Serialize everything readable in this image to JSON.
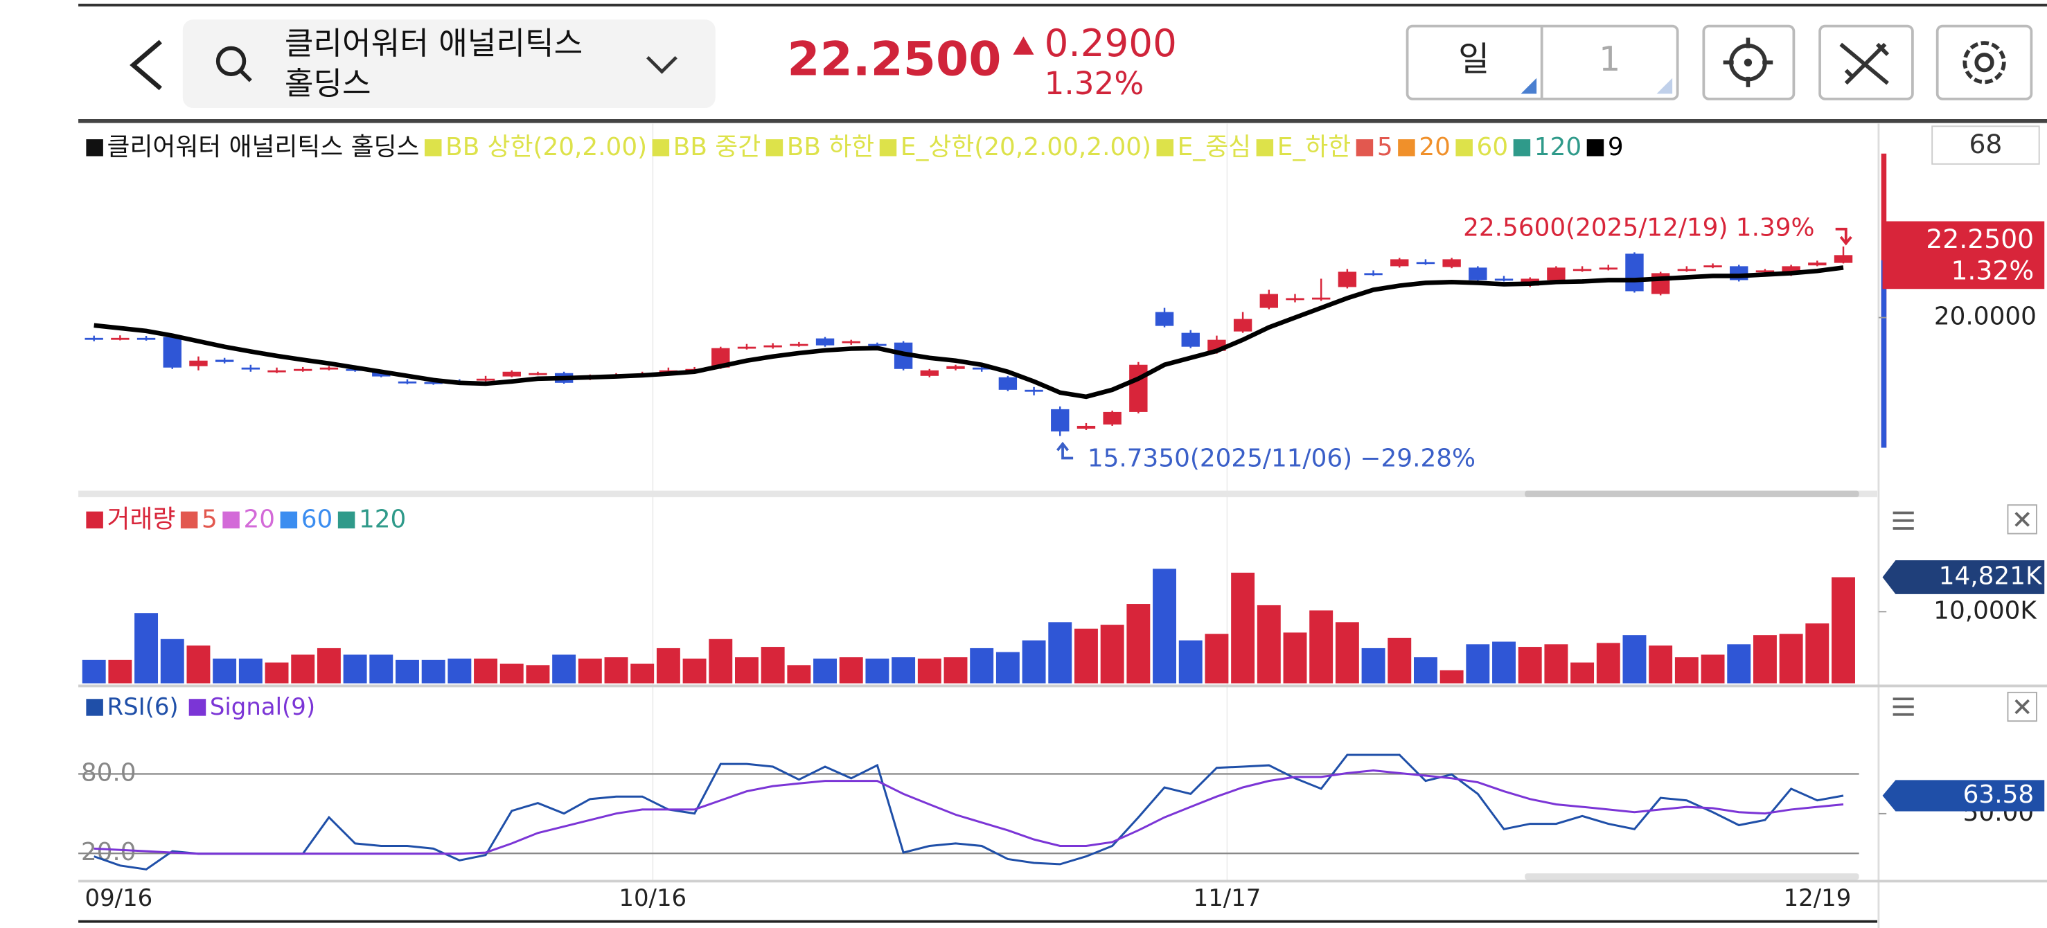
{
  "header": {
    "name_lines": [
      "클리어워터 애널리틱스",
      "홀딩스"
    ],
    "price": "22.2500",
    "change": "0.2900",
    "change_pct": "1.32%",
    "period": "일",
    "period_count": "1"
  },
  "chart_data": [
    {
      "type": "candlestick",
      "count_label": "68",
      "legend": [
        {
          "name": "클리어워터 애널리틱스 홀딩스",
          "color": "#111111"
        },
        {
          "name": "BB 상한(20,2.00)",
          "color": "#dde24a"
        },
        {
          "name": "BB 중간",
          "color": "#dde24a"
        },
        {
          "name": "BB 하한",
          "color": "#dde24a"
        },
        {
          "name": "E_상한(20,2.00,2.00)",
          "color": "#dde24a"
        },
        {
          "name": "E_중심",
          "color": "#dde24a"
        },
        {
          "name": "E_하한",
          "color": "#dde24a"
        },
        {
          "name": "5",
          "color": "#e2584f"
        },
        {
          "name": "20",
          "color": "#f0902a"
        },
        {
          "name": "60",
          "color": "#dde24a"
        },
        {
          "name": "120",
          "color": "#2f9a8a"
        }
      ],
      "up_color": "#d8253a",
      "down_color": "#2f56d6",
      "open": [
        19.27,
        19.25,
        19.27,
        19.3,
        18.25,
        18.48,
        18.2,
        18.05,
        18.12,
        18.17,
        18.15,
        18.05,
        17.7,
        17.68,
        17.7,
        17.75,
        17.88,
        17.95,
        18.0,
        17.8,
        17.88,
        17.95,
        18.05,
        18.12,
        18.2,
        18.9,
        18.95,
        19.0,
        19.25,
        19.1,
        19.05,
        19.1,
        17.9,
        18.15,
        18.2,
        17.85,
        17.4,
        16.7,
        16.0,
        16.15,
        16.6,
        20.2,
        19.45,
        18.8,
        19.5,
        20.35,
        20.65,
        20.65,
        21.1,
        21.6,
        21.85,
        22.0,
        21.82,
        21.8,
        21.4,
        21.15,
        21.35,
        21.7,
        21.78,
        22.3,
        20.85,
        21.7,
        21.85,
        21.85,
        21.65,
        21.55,
        21.88,
        21.97
      ],
      "high": [
        19.35,
        19.36,
        19.34,
        19.35,
        18.6,
        18.55,
        18.3,
        18.2,
        18.22,
        18.25,
        18.22,
        18.1,
        17.78,
        17.75,
        17.78,
        17.9,
        18.1,
        18.05,
        18.05,
        17.95,
        18.0,
        18.05,
        18.2,
        18.22,
        18.95,
        19.05,
        19.08,
        19.12,
        19.3,
        19.2,
        19.1,
        19.15,
        18.15,
        18.3,
        18.3,
        17.9,
        17.5,
        16.8,
        16.2,
        16.65,
        18.4,
        20.35,
        19.55,
        19.35,
        20.2,
        21.0,
        20.85,
        21.4,
        21.75,
        21.7,
        22.15,
        22.1,
        22.15,
        21.85,
        21.5,
        21.45,
        21.85,
        21.85,
        21.9,
        22.35,
        21.65,
        21.85,
        21.95,
        21.9,
        21.75,
        21.9,
        22.05,
        22.56
      ],
      "low": [
        19.15,
        19.18,
        19.17,
        18.15,
        18.1,
        18.35,
        18.05,
        18.0,
        18.05,
        18.1,
        18.05,
        17.85,
        17.6,
        17.58,
        17.57,
        17.7,
        17.85,
        17.92,
        17.62,
        17.75,
        17.82,
        17.9,
        18.0,
        18.08,
        18.15,
        18.85,
        18.88,
        18.95,
        18.95,
        19.02,
        18.95,
        18.1,
        17.85,
        18.1,
        18.05,
        17.35,
        17.2,
        15.735,
        15.95,
        16.1,
        16.55,
        19.65,
        18.9,
        18.7,
        19.45,
        20.3,
        20.55,
        20.6,
        21.05,
        21.5,
        21.8,
        21.9,
        21.78,
        21.3,
        21.3,
        21.1,
        21.3,
        21.65,
        21.7,
        20.9,
        20.8,
        21.65,
        21.78,
        21.3,
        21.55,
        21.5,
        21.85,
        21.95
      ],
      "close": [
        19.25,
        19.27,
        19.25,
        18.2,
        18.45,
        18.4,
        18.15,
        18.1,
        18.15,
        18.2,
        18.1,
        17.88,
        17.65,
        17.63,
        17.62,
        17.8,
        18.05,
        18.0,
        17.65,
        17.86,
        17.92,
        17.98,
        18.1,
        18.15,
        18.9,
        18.95,
        19.0,
        19.05,
        19.0,
        19.15,
        19.0,
        18.15,
        18.1,
        18.25,
        18.15,
        17.4,
        17.35,
        15.9,
        16.1,
        16.6,
        18.3,
        19.7,
        18.95,
        19.2,
        19.95,
        20.85,
        20.7,
        20.72,
        21.65,
        21.58,
        22.1,
        21.95,
        22.1,
        21.35,
        21.38,
        21.4,
        21.8,
        21.75,
        21.8,
        20.95,
        21.6,
        21.75,
        21.88,
        21.35,
        21.7,
        21.85,
        21.98,
        22.25
      ],
      "series": [
        {
          "name": "9",
          "color": "#000000",
          "values": [
            19.72,
            19.62,
            19.52,
            19.35,
            19.15,
            18.95,
            18.78,
            18.62,
            18.48,
            18.35,
            18.2,
            18.05,
            17.9,
            17.75,
            17.65,
            17.62,
            17.7,
            17.8,
            17.82,
            17.85,
            17.88,
            17.92,
            17.98,
            18.05,
            18.25,
            18.45,
            18.6,
            18.72,
            18.82,
            18.88,
            18.9,
            18.7,
            18.55,
            18.45,
            18.3,
            18.05,
            17.7,
            17.3,
            17.15,
            17.4,
            17.8,
            18.3,
            18.55,
            18.8,
            19.2,
            19.65,
            20.0,
            20.35,
            20.7,
            21.0,
            21.15,
            21.25,
            21.28,
            21.25,
            21.2,
            21.22,
            21.28,
            21.3,
            21.35,
            21.35,
            21.4,
            21.45,
            21.5,
            21.5,
            21.55,
            21.6,
            21.68,
            21.8
          ]
        }
      ],
      "ylim": [
        13.86,
        26.75
      ],
      "yticks": [
        {
          "value": 20,
          "label": "20.0000"
        }
      ],
      "last_tag": {
        "value": 22.25,
        "label": "22.2500",
        "change_label": "1.32%"
      },
      "annotations": [
        {
          "text": "22.5600(2025/12/19) 1.39%",
          "color": "#d8253a"
        },
        {
          "text": "15.7350(2025/11/06) −29.28%",
          "color": "#3a5fc8"
        }
      ]
    },
    {
      "type": "bar",
      "legend": [
        {
          "name": "거래량",
          "color": "#d8253a"
        },
        {
          "name": "5",
          "color": "#e2584f"
        },
        {
          "name": "20",
          "color": "#d36ad8"
        },
        {
          "name": "60",
          "color": "#3b8df0"
        },
        {
          "name": "120",
          "color": "#2f9a8a"
        }
      ],
      "values": [
        3272,
        3272,
        9817,
        6181,
        5272,
        3454,
        3454,
        2909,
        4000,
        4909,
        4000,
        4000,
        3272,
        3272,
        3454,
        3454,
        2727,
        2545,
        4000,
        3454,
        3636,
        2727,
        4909,
        3454,
        6181,
        3636,
        5090,
        2545,
        3454,
        3636,
        3454,
        3636,
        3454,
        3636,
        4909,
        4363,
        6000,
        8545,
        7636,
        8181,
        11090,
        16000,
        6000,
        6909,
        15454,
        10908,
        7090,
        10181,
        8545,
        4909,
        6363,
        3636,
        1818,
        5454,
        5818,
        5090,
        5454,
        2909,
        5636,
        6727,
        5272,
        3636,
        4000,
        5454,
        6727,
        6909,
        8363,
        14821
      ],
      "ylim": [
        0,
        20000
      ],
      "yticks": [
        {
          "value": 10000,
          "label": "10,000K"
        }
      ],
      "last_tag": {
        "value": 14821,
        "label": "14,821K"
      }
    },
    {
      "type": "line",
      "series": [
        {
          "name": "RSI(6)",
          "color": "#1f4fa8",
          "values": [
            17.7,
            10.8,
            7.9,
            21.6,
            19.7,
            19.7,
            19.7,
            19.7,
            19.7,
            47.2,
            27.5,
            25.6,
            25.6,
            23.6,
            14.7,
            18.7,
            52.1,
            58.0,
            50.1,
            61.0,
            62.9,
            62.9,
            53.1,
            50.1,
            87.5,
            87.5,
            85.5,
            75.7,
            85.5,
            76.7,
            86.5,
            20.6,
            25.6,
            27.5,
            25.6,
            15.7,
            12.8,
            11.8,
            17.7,
            25.6,
            47.2,
            69.8,
            64.9,
            84.6,
            85.5,
            86.5,
            76.7,
            68.8,
            94.4,
            94.4,
            94.4,
            74.7,
            79.6,
            64.9,
            38.3,
            42.3,
            42.3,
            48.2,
            42.3,
            38.3,
            61.9,
            60.0,
            51.1,
            41.3,
            45.2,
            68.8,
            60.0,
            63.58
          ]
        },
        {
          "name": "Signal(9)",
          "color": "#7b35d6",
          "values": [
            23.6,
            22.6,
            21.6,
            20.6,
            19.7,
            19.7,
            19.7,
            19.7,
            19.7,
            19.7,
            19.7,
            19.7,
            19.7,
            19.7,
            19.7,
            20.6,
            27.5,
            35.4,
            40.3,
            45.2,
            50.1,
            53.1,
            53.1,
            53.1,
            60.0,
            66.9,
            70.8,
            72.8,
            74.7,
            74.7,
            74.7,
            64.9,
            57.0,
            49.2,
            43.3,
            37.4,
            30.5,
            25.6,
            25.6,
            28.5,
            37.4,
            47.2,
            55.1,
            62.9,
            69.8,
            74.7,
            77.7,
            77.7,
            80.6,
            82.6,
            80.6,
            78.7,
            76.7,
            73.7,
            66.9,
            61.0,
            57.0,
            55.1,
            53.1,
            51.1,
            53.1,
            55.1,
            54.1,
            51.1,
            50.1,
            53.1,
            55.1,
            57.0
          ]
        }
      ],
      "ylim": [
        0,
        115
      ],
      "yticks": [
        {
          "value": 80,
          "label": "80.0"
        },
        {
          "value": 20,
          "label": "20.0"
        }
      ],
      "tags": [
        {
          "value": 50,
          "label": "50.00",
          "color": "#222222"
        },
        {
          "value": 63.58,
          "label": "63.58",
          "color": "#1f4fa8"
        }
      ],
      "categories": [
        "09/16",
        null,
        null,
        null,
        null,
        null,
        null,
        null,
        null,
        null,
        null,
        null,
        null,
        null,
        null,
        null,
        null,
        null,
        null,
        null,
        null,
        "10/16",
        null,
        null,
        null,
        null,
        null,
        null,
        null,
        null,
        null,
        null,
        null,
        null,
        null,
        null,
        null,
        null,
        null,
        null,
        null,
        null,
        null,
        "11/17",
        null,
        null,
        null,
        null,
        null,
        null,
        null,
        null,
        null,
        null,
        null,
        null,
        null,
        null,
        null,
        null,
        null,
        null,
        null,
        null,
        null,
        null,
        null,
        "12/19"
      ]
    }
  ]
}
